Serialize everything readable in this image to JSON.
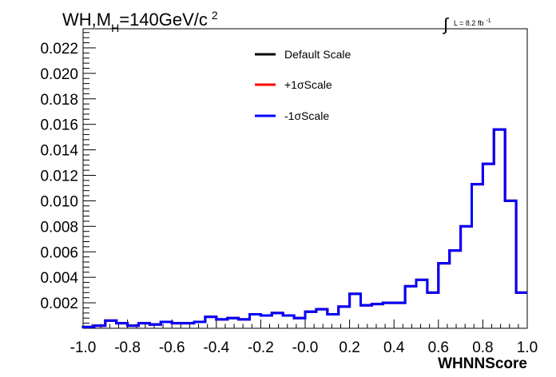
{
  "chart_data": {
    "type": "line",
    "title": "WH,M",
    "title_sub": "H",
    "title_rest": "=140GeV/c",
    "title_sup": "2",
    "lumi_integral": "∫",
    "lumi_text": "L = 8.2 fb",
    "lumi_sup": "-1",
    "xlabel": "WHNNScore",
    "ylabel": "",
    "xlim": [
      -1.0,
      1.0
    ],
    "ylim": [
      0,
      0.0235
    ],
    "x_ticks": [
      "-1.0",
      "-0.8",
      "-0.6",
      "-0.4",
      "-0.2",
      "-0.0",
      "0.2",
      "0.4",
      "0.6",
      "0.8",
      "1.0"
    ],
    "y_ticks": [
      "0.002",
      "0.004",
      "0.006",
      "0.008",
      "0.010",
      "0.012",
      "0.014",
      "0.016",
      "0.018",
      "0.020",
      "0.022"
    ],
    "legend_position": "top-center",
    "bin_edges": [
      -1.0,
      -0.95,
      -0.9,
      -0.85,
      -0.8,
      -0.75,
      -0.7,
      -0.65,
      -0.6,
      -0.55,
      -0.5,
      -0.45,
      -0.4,
      -0.35,
      -0.3,
      -0.25,
      -0.2,
      -0.15,
      -0.1,
      -0.05,
      0.0,
      0.05,
      0.1,
      0.15,
      0.2,
      0.25,
      0.3,
      0.35,
      0.4,
      0.45,
      0.5,
      0.55,
      0.6,
      0.65,
      0.7,
      0.75,
      0.8,
      0.85,
      0.9,
      0.95,
      1.0
    ],
    "series": [
      {
        "name": "Default Scale",
        "color": "#000000",
        "values": [
          0.0001,
          0.0002,
          0.0006,
          0.0004,
          0.0002,
          0.0004,
          0.0003,
          0.0005,
          0.0004,
          0.0004,
          0.0005,
          0.0009,
          0.0007,
          0.0008,
          0.0007,
          0.0011,
          0.001,
          0.0012,
          0.001,
          0.0008,
          0.0013,
          0.0015,
          0.0011,
          0.0017,
          0.0027,
          0.0018,
          0.0019,
          0.002,
          0.002,
          0.0033,
          0.0038,
          0.0028,
          0.0051,
          0.0061,
          0.008,
          0.0113,
          0.0129,
          0.0156,
          0.01,
          0.0028
        ]
      },
      {
        "name": "+1σScale",
        "color": "#ff0000",
        "values": [
          0.0001,
          0.0002,
          0.0006,
          0.0004,
          0.0002,
          0.0004,
          0.0003,
          0.0005,
          0.0004,
          0.0004,
          0.0005,
          0.0009,
          0.0007,
          0.0008,
          0.0007,
          0.0011,
          0.001,
          0.0012,
          0.001,
          0.0008,
          0.0013,
          0.0015,
          0.0011,
          0.0017,
          0.0027,
          0.0018,
          0.0019,
          0.002,
          0.002,
          0.0033,
          0.0038,
          0.0028,
          0.0051,
          0.0061,
          0.008,
          0.0113,
          0.0129,
          0.0156,
          0.01,
          0.0028
        ]
      },
      {
        "name": "-1σScale",
        "color": "#0000ff",
        "values": [
          0.0001,
          0.0002,
          0.0006,
          0.0004,
          0.0002,
          0.0004,
          0.0003,
          0.0005,
          0.0004,
          0.0004,
          0.0005,
          0.0009,
          0.0007,
          0.0008,
          0.0007,
          0.0011,
          0.001,
          0.0012,
          0.001,
          0.0008,
          0.0013,
          0.0015,
          0.0011,
          0.0017,
          0.0027,
          0.0018,
          0.0019,
          0.002,
          0.002,
          0.0033,
          0.0038,
          0.0028,
          0.0051,
          0.0061,
          0.008,
          0.0113,
          0.0129,
          0.0156,
          0.01,
          0.0028
        ]
      }
    ]
  }
}
